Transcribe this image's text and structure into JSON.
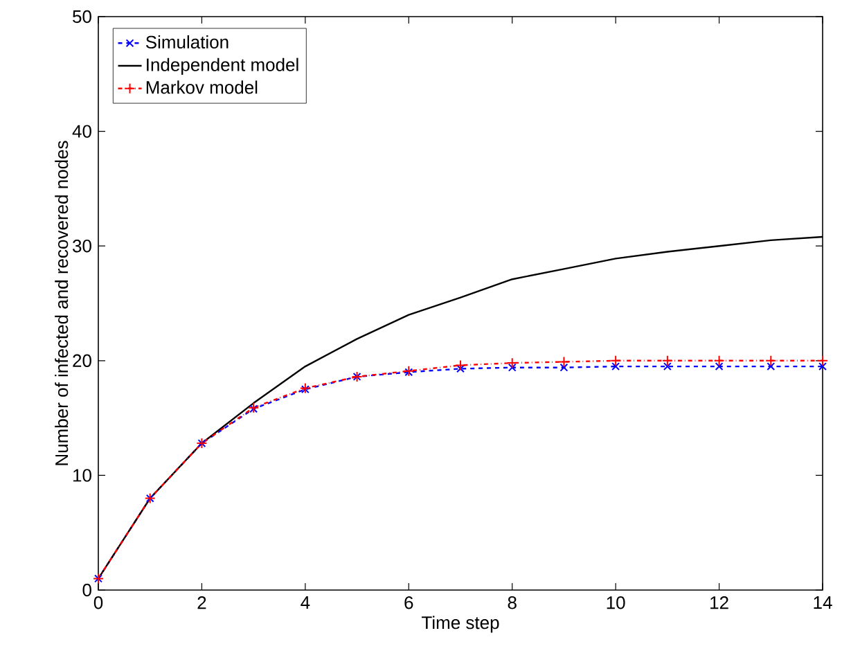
{
  "chart_data": {
    "type": "line",
    "xlabel": "Time step",
    "ylabel": "Number of infected and recovered nodes",
    "x": [
      0,
      1,
      2,
      3,
      4,
      5,
      6,
      7,
      8,
      9,
      10,
      11,
      12,
      13,
      14
    ],
    "xlim": [
      0,
      14
    ],
    "ylim": [
      0,
      50
    ],
    "xticks": [
      0,
      2,
      4,
      6,
      8,
      10,
      12,
      14
    ],
    "yticks": [
      0,
      10,
      20,
      30,
      40,
      50
    ],
    "grid": false,
    "legend": "top left",
    "series": [
      {
        "name": "Simulation",
        "color": "#0000ff",
        "marker": "cross",
        "line_style": "dashed",
        "values": [
          1.0,
          8.0,
          12.8,
          15.8,
          17.5,
          18.6,
          19.0,
          19.3,
          19.4,
          19.4,
          19.5,
          19.5,
          19.5,
          19.5,
          19.5
        ]
      },
      {
        "name": "Independent model",
        "color": "#000000",
        "marker": "none",
        "line_style": "solid",
        "values": [
          1.0,
          8.0,
          12.8,
          16.3,
          19.5,
          21.9,
          24.0,
          25.5,
          27.1,
          28.0,
          28.9,
          29.5,
          30.0,
          30.5,
          30.8
        ]
      },
      {
        "name": "Markov model",
        "color": "#ff0000",
        "marker": "plus",
        "line_style": "dashdot",
        "values": [
          1.0,
          8.0,
          12.8,
          15.9,
          17.6,
          18.6,
          19.1,
          19.6,
          19.8,
          19.9,
          20.0,
          20.0,
          20.0,
          20.0,
          20.0
        ]
      }
    ]
  }
}
